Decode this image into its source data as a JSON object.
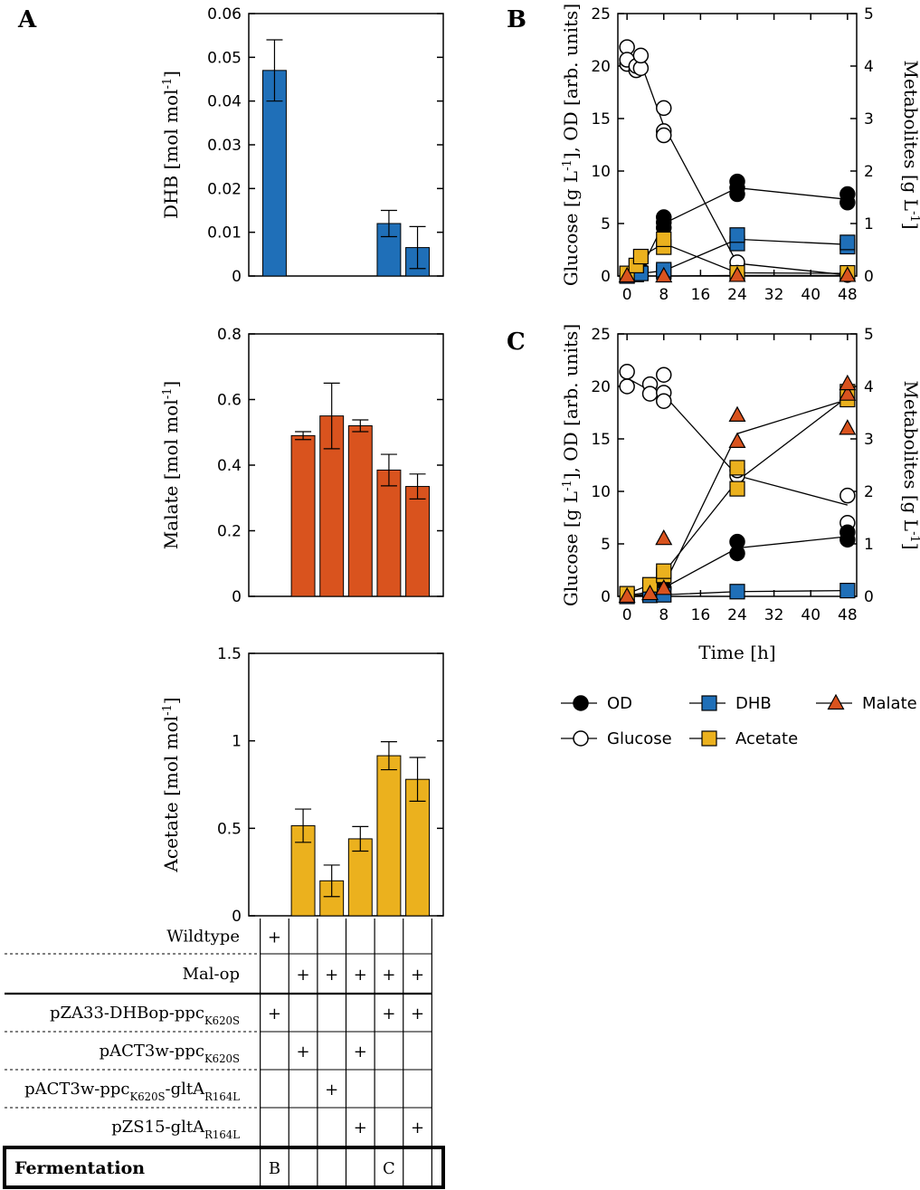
{
  "panel_labels": {
    "A": "A",
    "B": "B",
    "C": "C"
  },
  "colors": {
    "dhb": "#1f6fb8",
    "malate": "#d9531e",
    "acetate": "#ebb11e",
    "line": "#000000"
  },
  "chart_data": [
    {
      "id": "dhb_bar",
      "type": "bar",
      "ylabel": "DHB [mol mol",
      "ylabel_sup": "-1",
      "ylabel_tail": "]",
      "ylim": [
        0,
        0.06
      ],
      "ticks": [
        0,
        0.01,
        0.02,
        0.03,
        0.04,
        0.05,
        0.06
      ],
      "tick_labels": [
        "0",
        "0.01",
        "0.02",
        "0.03",
        "0.04",
        "0.05",
        "0.06"
      ],
      "strains": [
        1,
        2,
        3,
        4,
        5,
        6
      ],
      "values": [
        0.047,
        null,
        null,
        null,
        0.012,
        0.0065
      ],
      "errors": [
        0.007,
        null,
        null,
        null,
        0.003,
        0.0048
      ],
      "color": "#1f6fb8"
    },
    {
      "id": "malate_bar",
      "type": "bar",
      "ylabel": "Malate [mol mol",
      "ylabel_sup": "-1",
      "ylabel_tail": "]",
      "ylim": [
        0,
        0.8
      ],
      "ticks": [
        0,
        0.2,
        0.4,
        0.6,
        0.8
      ],
      "tick_labels": [
        "0",
        "0.2",
        "0.4",
        "0.6",
        "0.8"
      ],
      "strains": [
        1,
        2,
        3,
        4,
        5,
        6
      ],
      "values": [
        null,
        0.49,
        0.55,
        0.52,
        0.385,
        0.335
      ],
      "errors": [
        null,
        0.012,
        0.1,
        0.018,
        0.048,
        0.038
      ],
      "color": "#d9531e"
    },
    {
      "id": "acetate_bar",
      "type": "bar",
      "ylabel": "Acetate [mol mol",
      "ylabel_sup": "-1",
      "ylabel_tail": "]",
      "ylim": [
        0,
        1.5
      ],
      "ticks": [
        0,
        0.5,
        1,
        1.5
      ],
      "tick_labels": [
        "0",
        "0.5",
        "1",
        "1.5"
      ],
      "strains": [
        1,
        2,
        3,
        4,
        5,
        6
      ],
      "values": [
        null,
        0.515,
        0.2,
        0.44,
        0.915,
        0.78
      ],
      "errors": [
        null,
        0.095,
        0.09,
        0.07,
        0.08,
        0.125
      ],
      "color": "#ebb11e"
    },
    {
      "id": "fermentation_B",
      "type": "line",
      "panel": "B",
      "xlim": [
        -2,
        50
      ],
      "xticks": [
        0,
        8,
        16,
        24,
        32,
        40,
        48
      ],
      "ylim_left": [
        0,
        25
      ],
      "yticks_left": [
        0,
        5,
        10,
        15,
        20,
        25
      ],
      "ylim_right": [
        0,
        5
      ],
      "yticks_right": [
        0,
        1,
        2,
        3,
        4,
        5
      ],
      "ylabel_left": "Glucose [g L",
      "ylabel_left_sup": "-1",
      "ylabel_left_tail": "], OD [arb. units]",
      "ylabel_right": "Metabolites [g L",
      "ylabel_right_sup": "-1",
      "ylabel_right_tail": "]",
      "series": [
        {
          "name": "Glucose",
          "axis": "left",
          "marker": "open-circle",
          "mean_x": [
            0,
            2,
            3,
            8,
            24,
            48
          ],
          "mean_y": [
            20.8,
            20,
            20.3,
            14.3,
            1.2,
            0.1
          ],
          "points_x": [
            0,
            0,
            0,
            2,
            2,
            3,
            3,
            8,
            8,
            8,
            24,
            24,
            48,
            48
          ],
          "points_y": [
            20.2,
            21.8,
            20.6,
            19.6,
            20,
            19.8,
            21,
            16,
            13.8,
            13.4,
            1.3,
            0.3,
            0.1,
            0.2
          ]
        },
        {
          "name": "OD",
          "axis": "left",
          "marker": "filled-circle",
          "mean_x": [
            0,
            2,
            3,
            8,
            24,
            48
          ],
          "mean_y": [
            0.1,
            0.4,
            0.6,
            5,
            8.4,
            7.3
          ],
          "points_x": [
            0,
            0,
            2,
            3,
            8,
            8,
            8,
            24,
            24,
            24,
            48,
            48
          ],
          "points_y": [
            0.1,
            0.2,
            0.4,
            0.6,
            4.6,
            5.1,
            5.6,
            7.8,
            8.4,
            9,
            7,
            7.8
          ]
        },
        {
          "name": "DHB",
          "axis": "right",
          "marker": "square",
          "color": "#1f6fb8",
          "mean_x": [
            0,
            2,
            3,
            8,
            24,
            48
          ],
          "mean_y": [
            0,
            0.03,
            0.05,
            0.1,
            0.7,
            0.6
          ],
          "points_x": [
            0,
            2,
            3,
            8,
            8,
            24,
            24,
            48,
            48
          ],
          "points_y": [
            0,
            0.03,
            0.05,
            0.08,
            0.12,
            0.62,
            0.78,
            0.56,
            0.64
          ]
        },
        {
          "name": "Acetate",
          "axis": "right",
          "marker": "square",
          "color": "#ebb11e",
          "mean_x": [
            0,
            2,
            3,
            8,
            24,
            48
          ],
          "mean_y": [
            0.05,
            0.2,
            0.37,
            0.62,
            0.06,
            0.05
          ],
          "points_x": [
            0,
            2,
            3,
            8,
            8,
            24,
            48
          ],
          "points_y": [
            0.05,
            0.2,
            0.37,
            0.55,
            0.7,
            0.06,
            0.06
          ]
        },
        {
          "name": "Malate",
          "axis": "right",
          "marker": "triangle",
          "color": "#d9531e",
          "mean_x": [
            0,
            8,
            24,
            48
          ],
          "mean_y": [
            0,
            0,
            0.01,
            0.01
          ],
          "points_x": [
            0,
            8,
            24,
            48
          ],
          "points_y": [
            0,
            0,
            0.01,
            0.01
          ]
        }
      ]
    },
    {
      "id": "fermentation_C",
      "type": "line",
      "panel": "C",
      "xlim": [
        -2,
        50
      ],
      "xticks": [
        0,
        8,
        16,
        24,
        32,
        40,
        48
      ],
      "xlabel": "Time [h]",
      "ylim_left": [
        0,
        25
      ],
      "yticks_left": [
        0,
        5,
        10,
        15,
        20,
        25
      ],
      "ylim_right": [
        0,
        5
      ],
      "yticks_right": [
        0,
        1,
        2,
        3,
        4,
        5
      ],
      "ylabel_left": "Glucose [g L",
      "ylabel_left_sup": "-1",
      "ylabel_left_tail": "], OD [arb. units]",
      "ylabel_right": "Metabolites [g L",
      "ylabel_right_sup": "-1",
      "ylabel_right_tail": "]",
      "series": [
        {
          "name": "Glucose",
          "axis": "left",
          "marker": "open-circle",
          "mean_x": [
            0,
            5,
            8,
            24,
            48
          ],
          "mean_y": [
            20.8,
            19.6,
            19.2,
            11.5,
            8.7
          ],
          "points_x": [
            0,
            0,
            5,
            5,
            8,
            8,
            8,
            24,
            24,
            48,
            48
          ],
          "points_y": [
            20,
            21.4,
            20.2,
            19.3,
            21.1,
            19.4,
            18.6,
            11.5,
            12,
            7,
            9.6
          ]
        },
        {
          "name": "OD",
          "axis": "left",
          "marker": "filled-circle",
          "mean_x": [
            0,
            5,
            8,
            24,
            48
          ],
          "mean_y": [
            0.1,
            0.4,
            0.8,
            4.6,
            5.7
          ],
          "points_x": [
            0,
            5,
            8,
            24,
            24,
            48,
            48
          ],
          "points_y": [
            0.1,
            0.4,
            0.8,
            4.1,
            5.2,
            5.4,
            6.1
          ]
        },
        {
          "name": "DHB",
          "axis": "right",
          "marker": "square",
          "color": "#1f6fb8",
          "mean_x": [
            0,
            5,
            8,
            24,
            48
          ],
          "mean_y": [
            0,
            0.02,
            0.03,
            0.09,
            0.11
          ],
          "points_x": [
            0,
            5,
            8,
            24,
            48
          ],
          "points_y": [
            0,
            0.02,
            0.03,
            0.09,
            0.11
          ]
        },
        {
          "name": "Acetate",
          "axis": "right",
          "marker": "square",
          "color": "#ebb11e",
          "mean_x": [
            0,
            5,
            8,
            24,
            48
          ],
          "mean_y": [
            0.05,
            0.22,
            0.45,
            2.2,
            3.8
          ],
          "points_x": [
            0,
            5,
            8,
            8,
            24,
            24,
            48,
            48
          ],
          "points_y": [
            0.05,
            0.22,
            0.4,
            0.48,
            2.05,
            2.45,
            3.75,
            3.9
          ]
        },
        {
          "name": "Malate",
          "axis": "right",
          "marker": "triangle",
          "color": "#d9531e",
          "mean_x": [
            0,
            5,
            8,
            24,
            48
          ],
          "mean_y": [
            0,
            0.05,
            0.2,
            3.1,
            3.75
          ],
          "points_x": [
            0,
            5,
            8,
            8,
            24,
            24,
            48,
            48,
            48
          ],
          "points_y": [
            0,
            0.05,
            0.15,
            1.1,
            2.95,
            3.45,
            3.2,
            3.85,
            4.05
          ]
        }
      ]
    }
  ],
  "legend": {
    "items": [
      {
        "label": "OD",
        "marker": "filled-circle"
      },
      {
        "label": "DHB",
        "marker": "square",
        "color": "#1f6fb8"
      },
      {
        "label": "Malate",
        "marker": "triangle",
        "color": "#d9531e"
      },
      {
        "label": "Glucose",
        "marker": "open-circle"
      },
      {
        "label": "Acetate",
        "marker": "square",
        "color": "#ebb11e"
      }
    ]
  },
  "table": {
    "rows": [
      {
        "label": "Wildtype",
        "label_sub": "",
        "label_tail": "",
        "label_sub2": "",
        "marks": [
          "+",
          "",
          "",
          "",
          "",
          ""
        ]
      },
      {
        "label": "Mal-op",
        "label_sub": "",
        "label_tail": "",
        "label_sub2": "",
        "marks": [
          "",
          "+",
          "+",
          "+",
          "+",
          "+"
        ]
      },
      {
        "label": "pZA33-DHBop-ppc",
        "label_sub": "K620S",
        "label_tail": "",
        "label_sub2": "",
        "marks": [
          "+",
          "",
          "",
          "",
          "+",
          "+"
        ]
      },
      {
        "label": "pACT3w-ppc",
        "label_sub": "K620S",
        "label_tail": "",
        "label_sub2": "",
        "marks": [
          "",
          "+",
          "",
          "+",
          "",
          ""
        ]
      },
      {
        "label": "pACT3w-ppc",
        "label_sub": "K620S",
        "label_tail": "-gltA",
        "label_sub2": "R164L",
        "marks": [
          "",
          "",
          "+",
          "",
          "",
          ""
        ]
      },
      {
        "label": "pZS15-gltA",
        "label_sub": "R164L",
        "label_tail": "",
        "label_sub2": "",
        "marks": [
          "",
          "",
          "",
          "+",
          "",
          "+"
        ]
      }
    ],
    "fermentation": {
      "label": "Fermentation",
      "marks": [
        "B",
        "",
        "",
        "",
        "C",
        ""
      ]
    }
  }
}
